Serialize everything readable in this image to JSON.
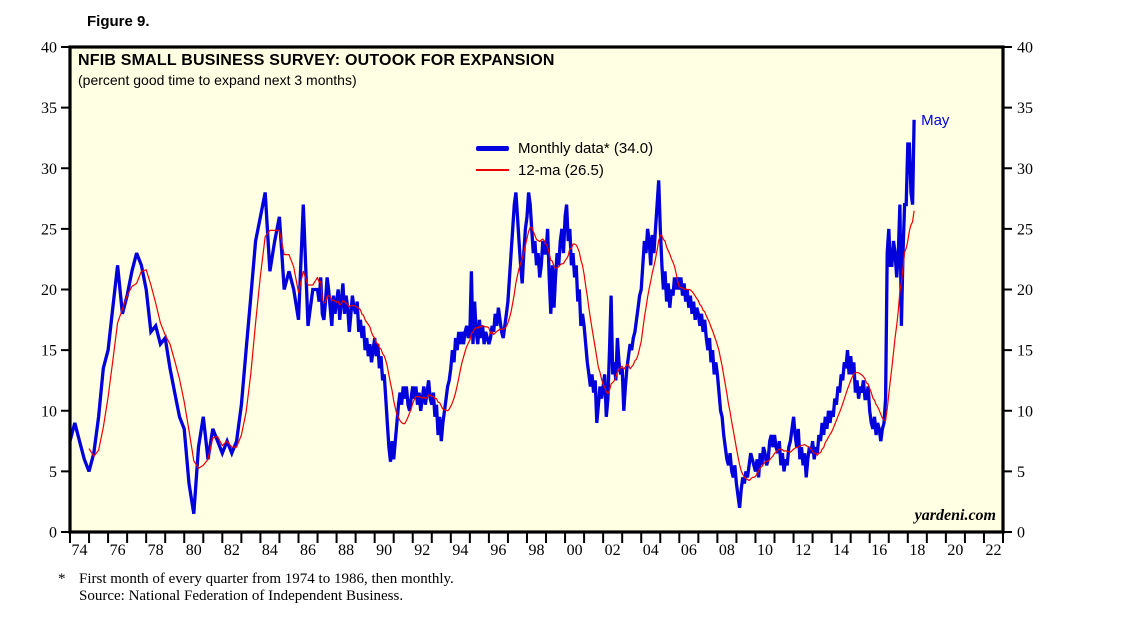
{
  "page": {
    "figure_label": "Figure 9."
  },
  "chart": {
    "branding": "yardeni.com",
    "colors": {
      "plot_bg": "#FFFFE3",
      "frame": "#000000",
      "axis_text": "#000000",
      "monthly_line": "#0000DD",
      "moving_average_line": "#EE0000",
      "annotation_text": "#0000DD"
    }
  },
  "chart_data": {
    "type": "line",
    "title": "NFIB SMALL BUSINESS SURVEY: OUTOOK FOR EXPANSION",
    "subtitle": "(percent good time to expand next 3 months)",
    "xlim": [
      1974,
      2023
    ],
    "ylim": [
      0,
      40
    ],
    "y_ticks": [
      0,
      5,
      10,
      15,
      20,
      25,
      30,
      35,
      40
    ],
    "y_tick_sides": "both",
    "x_tick_step_years": 1,
    "x_labels": {
      "start_year": 1974,
      "step_years": 2,
      "labels": [
        "74",
        "76",
        "78",
        "80",
        "82",
        "84",
        "86",
        "88",
        "90",
        "92",
        "94",
        "96",
        "98",
        "00",
        "02",
        "04",
        "06",
        "08",
        "10",
        "12",
        "14",
        "16",
        "18",
        "20",
        "22"
      ]
    },
    "grid": false,
    "legend_position": "inside-top-center",
    "annotation": {
      "text": "May",
      "year": 2018.33,
      "value": 34
    },
    "series": [
      {
        "name": "Monthly data* (34.0)",
        "color": "#0000DD",
        "width": 3.3,
        "latest_value": 34.0,
        "segments": [
          {
            "cadence": "quarterly (first month of every quarter)",
            "start_year": 1974,
            "step_years": 0.25,
            "values": [
              7.5,
              9,
              7.5,
              6,
              5,
              6.5,
              9.5,
              13.5,
              15,
              18.5,
              22,
              18,
              19.5,
              21.5,
              23,
              22,
              20,
              16.5,
              17,
              15.5,
              16,
              13.5,
              11.5,
              9.5,
              8.5,
              4,
              1.5,
              7,
              9.5,
              6,
              8.5,
              7.5,
              6.5,
              7.5,
              6.5,
              7.5,
              10.5,
              15,
              19.5,
              24,
              26,
              28,
              21.5,
              24,
              26,
              20,
              21.5,
              20,
              17.5,
              27,
              17,
              20
            ]
          },
          {
            "cadence": "monthly",
            "start_year": 1987,
            "step_years": 0.0833333333,
            "values_by_year": [
              [
                20,
                19,
                21,
                18,
                17.5,
                19,
                21,
                20,
                18.5,
                17,
                19.5,
                18
              ],
              [
                19,
                20,
                17.5,
                19,
                20.5,
                18,
                19.5,
                18.5,
                16.5,
                18,
                19.5,
                18.5
              ],
              [
                18,
                19,
                16.5,
                17.5,
                16,
                17,
                15,
                16,
                14.5,
                15.5,
                14,
                15
              ],
              [
                16,
                14.5,
                15.5,
                13.5,
                14.5,
                12.5,
                13,
                11,
                9,
                7,
                5.8,
                7.5
              ],
              [
                6,
                7.5,
                9,
                10.5,
                11.5,
                10.5,
                12,
                11,
                12,
                10.5,
                10,
                11
              ],
              [
                12,
                11,
                12,
                10.5,
                11.5,
                10,
                11,
                12,
                10.5,
                11.5,
                12.5,
                11
              ],
              [
                10.5,
                11.5,
                9.5,
                10.5,
                8,
                9.5,
                7.5,
                9,
                10,
                11,
                12,
                12.5
              ],
              [
                13.5,
                15,
                14,
                16,
                15,
                16.5,
                15.5,
                16.5,
                15.5,
                16.5,
                17,
                16
              ],
              [
                16.5,
                21.5,
                15.5,
                19,
                16.5,
                15.5,
                17.5,
                16,
                17,
                15.5,
                16.5,
                16
              ],
              [
                15.5,
                16,
                17,
                16.5,
                18,
                17,
                18.5,
                17.5,
                16.5,
                16,
                17,
                18
              ],
              [
                19,
                21,
                23,
                25,
                27,
                28,
                26,
                24,
                22,
                20.5,
                23,
                25
              ],
              [
                26,
                28,
                27,
                25,
                23,
                24,
                22,
                23,
                21,
                22,
                24,
                23
              ],
              [
                23,
                25,
                21,
                18,
                22,
                18.5,
                21,
                23,
                22,
                24,
                25,
                23
              ],
              [
                26,
                27,
                24,
                25,
                22,
                23,
                21,
                22,
                19,
                20,
                17,
                18
              ],
              [
                17,
                15.5,
                14,
                13,
                12,
                13,
                11.5,
                12.5,
                9,
                10.5,
                12,
                11
              ],
              [
                12,
                13,
                9.5,
                11,
                15,
                19.5,
                13,
                14,
                12.5,
                16,
                14,
                13
              ],
              [
                13.5,
                10,
                12,
                13.5,
                14.5,
                15.5,
                15,
                16,
                16.5,
                17.5,
                18.5,
                19.5
              ],
              [
                20,
                22,
                24,
                23,
                25,
                24,
                22,
                24.5,
                23,
                25,
                27,
                29
              ],
              [
                25,
                22,
                20,
                21.5,
                19,
                20.5,
                18.5,
                20,
                19.5,
                21,
                20,
                21
              ],
              [
                20,
                21,
                19.5,
                20.5,
                19,
                20,
                18.5,
                19.5,
                18,
                19,
                17.5,
                18.5
              ],
              [
                18,
                17,
                18,
                16.5,
                17.5,
                16,
                15,
                16,
                14,
                15,
                13,
                14
              ],
              [
                13,
                11.5,
                10,
                9.5,
                8,
                7,
                6,
                5.5,
                6.5,
                5,
                4.5,
                5.5
              ],
              [
                4,
                3,
                2,
                3.5,
                4.5,
                4,
                5,
                4.5,
                5.5,
                6.5,
                6,
                5.5
              ],
              [
                5,
                6,
                4.5,
                6.5,
                5.5,
                7,
                6.5,
                5.5,
                6,
                7.5,
                8,
                7
              ],
              [
                8,
                7,
                6.5,
                7.5,
                5.5,
                6.5,
                5,
                6,
                5.5,
                7,
                7.5,
                8.5
              ],
              [
                9.5,
                8,
                7,
                8.5,
                6,
                7,
                5.5,
                6.5,
                4.5,
                6,
                7,
                6.5
              ],
              [
                7.5,
                6,
                7,
                6.5,
                8,
                7.5,
                9,
                8,
                9.5,
                8.5,
                10,
                9
              ],
              [
                10,
                9.5,
                11,
                10.5,
                12,
                11.5,
                13,
                12.5,
                14,
                13.5,
                15,
                13
              ],
              [
                14.5,
                13,
                14,
                11.5,
                12.5,
                11,
                12,
                11.5,
                12.5,
                11,
                11,
                12
              ],
              [
                10,
                9,
                8.5,
                9.5,
                8,
                9,
                8.5,
                7.5,
                8.5,
                9,
                11,
                23
              ],
              [
                25,
                22,
                22,
                24,
                23,
                21,
                23,
                27,
                17,
                23,
                27,
                27
              ],
              [
                32,
                32,
                28,
                27,
                34
              ]
            ]
          }
        ]
      },
      {
        "name": "12-ma (26.5)",
        "color": "#EE0000",
        "width": 1.2,
        "derived": "trailing 12-month moving average of the monthly series",
        "end_value": 26.5
      }
    ]
  },
  "footnote": {
    "marker": "*",
    "line1": "First month of every quarter from 1974 to 1986, then monthly.",
    "line2": "Source: National Federation of Independent Business."
  }
}
